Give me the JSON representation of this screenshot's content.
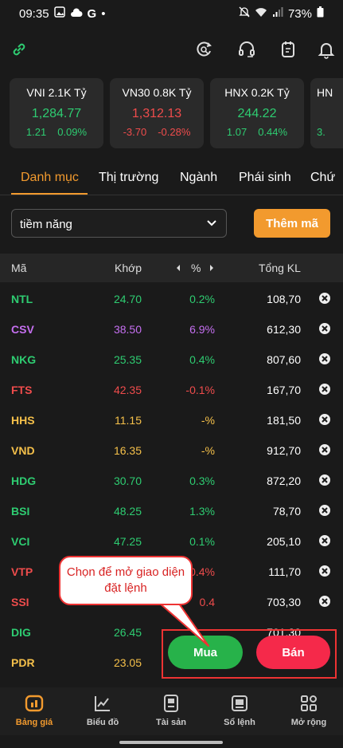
{
  "status_bar": {
    "time": "09:35",
    "carrier_glyph": "G",
    "battery": "73%"
  },
  "toolbar": {
    "icons": [
      "link-icon",
      "search-refresh-icon",
      "headset-icon",
      "notes-icon",
      "bell-icon"
    ]
  },
  "indices": [
    {
      "name": "VNI",
      "value_label": "2.1K Tỷ",
      "price": "1,284.77",
      "change": "1.21",
      "percent": "0.09%",
      "trend": "up"
    },
    {
      "name": "VN30",
      "value_label": "0.8K Tỷ",
      "price": "1,312.13",
      "change": "-3.70",
      "percent": "-0.28%",
      "trend": "down"
    },
    {
      "name": "HNX",
      "value_label": "0.2K Tỷ",
      "price": "244.22",
      "change": "1.07",
      "percent": "0.44%",
      "trend": "up"
    },
    {
      "name": "HN",
      "value_label": "",
      "price": "",
      "change": "3.",
      "percent": "",
      "trend": "up"
    }
  ],
  "tabs": [
    {
      "label": "Danh mục",
      "active": true
    },
    {
      "label": "Thị trường",
      "active": false
    },
    {
      "label": "Ngành",
      "active": false
    },
    {
      "label": "Phái sinh",
      "active": false
    },
    {
      "label": "Chứ",
      "active": false
    }
  ],
  "watchlist": {
    "selected": "tiềm năng",
    "add_label": "Thêm mã"
  },
  "table": {
    "headers": {
      "code": "Mã",
      "price": "Khớp",
      "pct": "%",
      "volume": "Tổng KL"
    },
    "rows": [
      {
        "code": "NTL",
        "price": "24.70",
        "pct": "0.2%",
        "volume": "108,70",
        "color": "green"
      },
      {
        "code": "CSV",
        "price": "38.50",
        "pct": "6.9%",
        "volume": "612,30",
        "color": "purple"
      },
      {
        "code": "NKG",
        "price": "25.35",
        "pct": "0.4%",
        "volume": "807,60",
        "color": "green"
      },
      {
        "code": "FTS",
        "price": "42.35",
        "pct": "-0.1%",
        "volume": "167,70",
        "color": "red"
      },
      {
        "code": "HHS",
        "price": "11.15",
        "pct": "-%",
        "volume": "181,50",
        "color": "yellow"
      },
      {
        "code": "VND",
        "price": "16.35",
        "pct": "-%",
        "volume": "912,70",
        "color": "yellow"
      },
      {
        "code": "HDG",
        "price": "30.70",
        "pct": "0.3%",
        "volume": "872,20",
        "color": "green"
      },
      {
        "code": "BSI",
        "price": "48.25",
        "pct": "1.3%",
        "volume": "78,70",
        "color": "green"
      },
      {
        "code": "VCI",
        "price": "47.25",
        "pct": "0.1%",
        "volume": "205,10",
        "color": "green"
      },
      {
        "code": "VTP",
        "price": "",
        "pct": "0.4%",
        "volume": "111,70",
        "color": "red"
      },
      {
        "code": "SSI",
        "price": "",
        "pct": "0.4",
        "volume": "703,30",
        "color": "red"
      },
      {
        "code": "DIG",
        "price": "26.45",
        "pct": "",
        "volume": "701,30",
        "color": "green"
      },
      {
        "code": "PDR",
        "price": "23.05",
        "pct": "",
        "volume": "",
        "color": "yellow"
      }
    ]
  },
  "callout": {
    "text": "Chọn để mở giao diện đặt lệnh"
  },
  "order_buttons": {
    "buy": "Mua",
    "sell": "Bán"
  },
  "bottom_nav": [
    {
      "label": "Bảng giá",
      "icon": "chart-board-icon",
      "active": true
    },
    {
      "label": "Biểu đồ",
      "icon": "line-chart-icon",
      "active": false
    },
    {
      "label": "Tài sản",
      "icon": "wallet-icon",
      "active": false
    },
    {
      "label": "Sổ lệnh",
      "icon": "order-book-icon",
      "active": false
    },
    {
      "label": "Mở rộng",
      "icon": "grid-icon",
      "active": false
    }
  ],
  "colors": {
    "accent": "#f29a2e",
    "up": "#2ecc71",
    "down": "#ef4c4c",
    "ceiling": "#c56ff0",
    "reference": "#f5c04a",
    "buy": "#27b24a",
    "sell": "#f5294a"
  }
}
